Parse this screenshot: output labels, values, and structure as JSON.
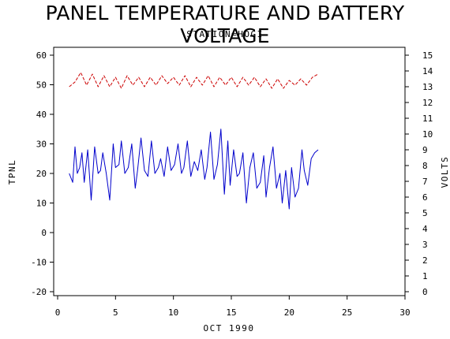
{
  "chart_data": {
    "type": "line",
    "title": "PANEL TEMPERATURE AND BATTERY VOLTAGE",
    "subtitle": "STATION=HOGI",
    "xlabel": "OCT 1990",
    "ylabel_left": "TPNL",
    "ylabel_right": "VOLTS",
    "xlim": [
      0,
      30
    ],
    "ylim_left": [
      -20,
      60
    ],
    "ylim_right": [
      0,
      15
    ],
    "x_ticks": [
      0,
      5,
      10,
      15,
      20,
      25,
      30
    ],
    "y_ticks_left": [
      -20,
      -10,
      0,
      10,
      20,
      30,
      40,
      50,
      60
    ],
    "y_ticks_right": [
      0,
      1,
      2,
      3,
      4,
      5,
      6,
      7,
      8,
      9,
      10,
      11,
      12,
      13,
      14,
      15
    ],
    "colors": {
      "panel_temperature": "#0000cc",
      "battery_voltage": "#cc0000"
    },
    "series": [
      {
        "axis": "left",
        "line_style": "solid",
        "x": [
          1.0,
          1.3,
          1.5,
          1.7,
          1.9,
          2.1,
          2.3,
          2.6,
          2.9,
          3.2,
          3.5,
          3.7,
          3.9,
          4.2,
          4.5,
          4.8,
          5.0,
          5.3,
          5.5,
          5.8,
          6.1,
          6.4,
          6.7,
          6.9,
          7.2,
          7.5,
          7.8,
          8.1,
          8.4,
          8.7,
          8.9,
          9.2,
          9.5,
          9.8,
          10.1,
          10.4,
          10.7,
          10.9,
          11.2,
          11.5,
          11.8,
          12.1,
          12.4,
          12.7,
          12.9,
          13.2,
          13.5,
          13.8,
          14.1,
          14.4,
          14.7,
          14.9,
          15.2,
          15.5,
          15.7,
          16.0,
          16.3,
          16.6,
          16.9,
          17.2,
          17.5,
          17.8,
          18.0,
          18.3,
          18.6,
          18.9,
          19.2,
          19.4,
          19.7,
          20.0,
          20.2,
          20.5,
          20.8,
          21.1,
          21.3,
          21.6,
          21.9,
          22.2,
          22.5
        ],
        "y": [
          20,
          17,
          29,
          20,
          22,
          27,
          17,
          28,
          11,
          29,
          20,
          21,
          27,
          20,
          11,
          30,
          22,
          23,
          31,
          20,
          22,
          30,
          15,
          21,
          32,
          21,
          19,
          31,
          20,
          22,
          25,
          19,
          29,
          21,
          23,
          30,
          20,
          22,
          31,
          19,
          24,
          21,
          28,
          18,
          22,
          34,
          18,
          23,
          35,
          13,
          31,
          16,
          28,
          19,
          20,
          27,
          10,
          22,
          27,
          15,
          17,
          26,
          12,
          22,
          29,
          15,
          20,
          10,
          21,
          8,
          22,
          12,
          15,
          28,
          21,
          16,
          25,
          27,
          28
        ],
        "min_values": [
          17,
          11,
          15,
          13,
          10,
          8
        ],
        "max_values": [
          30,
          31,
          32,
          35,
          29,
          28
        ]
      },
      {
        "axis": "right",
        "line_style": "dashed",
        "x": [
          1.0,
          1.5,
          2.0,
          2.5,
          3.0,
          3.5,
          4.0,
          4.5,
          5.0,
          5.5,
          6.0,
          6.5,
          7.0,
          7.5,
          8.0,
          8.5,
          9.0,
          9.5,
          10.0,
          10.5,
          11.0,
          11.5,
          12.0,
          12.5,
          13.0,
          13.5,
          14.0,
          14.5,
          15.0,
          15.5,
          16.0,
          16.5,
          17.0,
          17.5,
          18.0,
          18.5,
          19.0,
          19.5,
          20.0,
          20.5,
          21.0,
          21.5,
          22.0,
          22.5
        ],
        "y": [
          13.0,
          13.3,
          13.9,
          13.1,
          13.8,
          13.0,
          13.7,
          13.0,
          13.6,
          12.9,
          13.7,
          13.1,
          13.6,
          13.0,
          13.6,
          13.1,
          13.7,
          13.2,
          13.6,
          13.1,
          13.7,
          13.0,
          13.6,
          13.1,
          13.7,
          13.0,
          13.6,
          13.1,
          13.6,
          13.0,
          13.6,
          13.1,
          13.6,
          13.0,
          13.5,
          12.9,
          13.5,
          12.9,
          13.4,
          13.1,
          13.5,
          13.1,
          13.6,
          13.8
        ]
      }
    ]
  }
}
